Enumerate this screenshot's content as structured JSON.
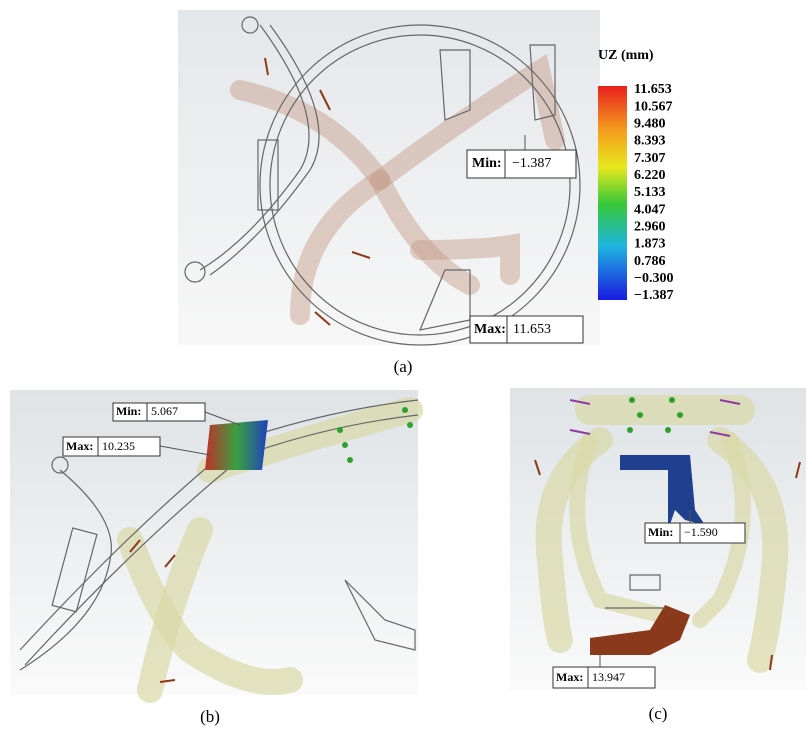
{
  "panels": [
    {
      "label": "(a)",
      "legend": {
        "title": "UZ (mm)",
        "ticks": [
          "11.653",
          "10.567",
          "9.480",
          "8.393",
          "7.307",
          "6.220",
          "5.133",
          "4.047",
          "2.960",
          "1.873",
          "0.786",
          "−0.300",
          "−1.387"
        ]
      },
      "min": {
        "label": "Min:",
        "value": "−1.387"
      },
      "max": {
        "label": "Max:",
        "value": "11.653"
      }
    },
    {
      "label": "(b)",
      "min": {
        "label": "Min:",
        "value": "5.067"
      },
      "max": {
        "label": "Max:",
        "value": "10.235"
      }
    },
    {
      "label": "(c)",
      "min": {
        "label": "Min:",
        "value": "−1.590"
      },
      "max": {
        "label": "Max:",
        "value": "13.947"
      }
    }
  ]
}
